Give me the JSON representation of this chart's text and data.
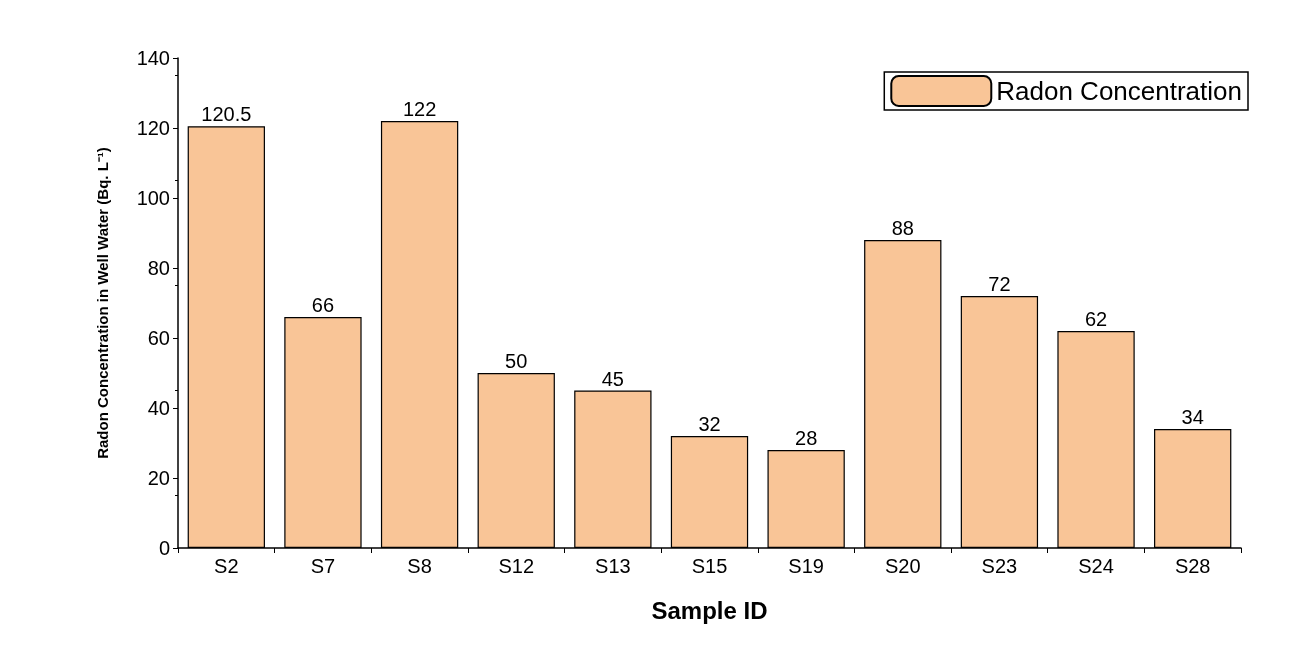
{
  "chart_data": {
    "type": "bar",
    "xlabel": "Sample ID",
    "ylabel": "Radon Concentration in Well Water (Bq. L⁻¹)",
    "categories": [
      "S2",
      "S7",
      "S8",
      "S12",
      "S13",
      "S15",
      "S19",
      "S20",
      "S23",
      "S24",
      "S28"
    ],
    "series": [
      {
        "name": "Radon Concentration",
        "color": "#f9c597",
        "values": [
          120.5,
          66,
          122,
          50,
          45,
          32,
          28,
          88,
          72,
          62,
          34
        ]
      }
    ],
    "ylim": [
      0,
      140
    ],
    "yticks": [
      0,
      20,
      40,
      60,
      80,
      100,
      120,
      140
    ],
    "grid": false,
    "legend": "top right",
    "data_labels": true
  }
}
